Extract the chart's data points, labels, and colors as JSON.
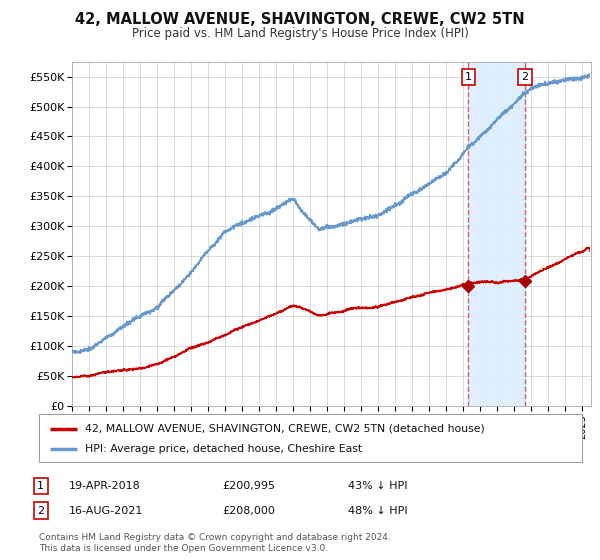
{
  "title": "42, MALLOW AVENUE, SHAVINGTON, CREWE, CW2 5TN",
  "subtitle": "Price paid vs. HM Land Registry's House Price Index (HPI)",
  "ylim": [
    0,
    575000
  ],
  "yticks": [
    0,
    50000,
    100000,
    150000,
    200000,
    250000,
    300000,
    350000,
    400000,
    450000,
    500000,
    550000
  ],
  "xlim_start": 1995.0,
  "xlim_end": 2025.5,
  "background_color": "#ffffff",
  "plot_bg_color": "#ffffff",
  "grid_color": "#cccccc",
  "red_line_color": "#cc0000",
  "blue_line_color": "#6699cc",
  "shade_color": "#ddeeff",
  "sale1_x": 2018.3,
  "sale1_y": 200995,
  "sale1_label": "1",
  "sale1_date": "19-APR-2018",
  "sale1_price": "£200,995",
  "sale1_pct": "43% ↓ HPI",
  "sale2_x": 2021.62,
  "sale2_y": 208000,
  "sale2_label": "2",
  "sale2_date": "16-AUG-2021",
  "sale2_price": "£208,000",
  "sale2_pct": "48% ↓ HPI",
  "vline_color": "#cc6666",
  "vline_style": "--",
  "marker_color": "#aa0000",
  "legend_line1": "42, MALLOW AVENUE, SHAVINGTON, CREWE, CW2 5TN (detached house)",
  "legend_line2": "HPI: Average price, detached house, Cheshire East",
  "footer": "Contains HM Land Registry data © Crown copyright and database right 2024.\nThis data is licensed under the Open Government Licence v3.0."
}
